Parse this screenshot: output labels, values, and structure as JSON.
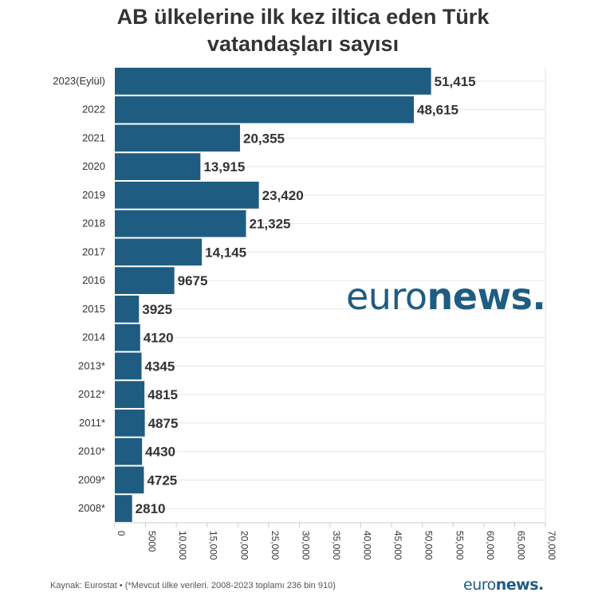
{
  "chart_data": {
    "type": "bar",
    "orientation": "horizontal",
    "title": "AB ülkelerine ilk kez iltica eden Türk vatandaşları sayısı",
    "categories": [
      "2023(Eylül)",
      "2022",
      "2021",
      "2020",
      "2019",
      "2018",
      "2017",
      "2016",
      "2015",
      "2014",
      "2013*",
      "2012*",
      "2011*",
      "2010*",
      "2009*",
      "2008*"
    ],
    "values": [
      51415,
      48615,
      20355,
      13915,
      23420,
      21325,
      14145,
      9675,
      3925,
      4120,
      4345,
      4815,
      4875,
      4430,
      4725,
      2810
    ],
    "value_labels": [
      "51,415",
      "48,615",
      "20,355",
      "13,915",
      "23,420",
      "21,325",
      "14,145",
      "9675",
      "3925",
      "4120",
      "4345",
      "4815",
      "4875",
      "4430",
      "4725",
      "2810"
    ],
    "xlim": [
      0,
      70000
    ],
    "x_ticks": [
      0,
      5000,
      10000,
      15000,
      20000,
      25000,
      30000,
      35000,
      40000,
      45000,
      50000,
      55000,
      60000,
      65000,
      70000
    ],
    "x_tick_labels": [
      "0",
      "5000",
      "10,000",
      "15,000",
      "20,000",
      "25,000",
      "30,000",
      "35,000",
      "40,000",
      "45,000",
      "50,000",
      "55,000",
      "60,000",
      "65,000",
      "70,000"
    ],
    "grid": true,
    "colors": {
      "bar": "#1f5c82",
      "grid": "#e6e6e6",
      "text": "#333333"
    }
  },
  "header": {
    "title_line1": "AB ülkelerine ilk kez iltica eden Türk",
    "title_line2": "vatandaşları sayısı"
  },
  "footer": {
    "source": "Kaynak: Eurostat • (*Mevcut ülke verileri. 2008-2023 toplamı 236 bin 910)"
  },
  "brand": {
    "logo_light": "euro",
    "logo_bold": "news.",
    "color": "#1f5c82"
  }
}
